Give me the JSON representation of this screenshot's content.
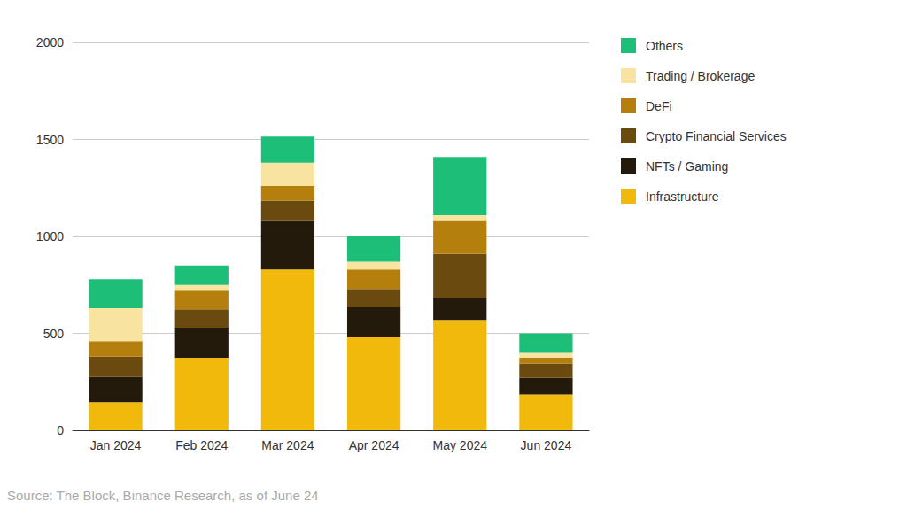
{
  "chart_data": {
    "type": "bar",
    "stacked": true,
    "grid": true,
    "legend": "right",
    "source": "Source: The Block, Binance Research, as of June 24",
    "categories": [
      "Jan 2024",
      "Feb 2024",
      "Mar 2024",
      "Apr 2024",
      "May 2024",
      "Jun 2024"
    ],
    "ylim": [
      0,
      2000
    ],
    "yticks": [
      0,
      500,
      1000,
      1500,
      2000
    ],
    "series": [
      {
        "name": "Infrastructure",
        "color": "#f0b90b",
        "values": [
          145,
          375,
          830,
          480,
          570,
          185
        ]
      },
      {
        "name": "NFTs / Gaming",
        "color": "#231a0b",
        "values": [
          130,
          155,
          250,
          155,
          115,
          85
        ]
      },
      {
        "name": "Crypto Financial Services",
        "color": "#6b4a10",
        "values": [
          105,
          95,
          105,
          95,
          225,
          75
        ]
      },
      {
        "name": "DeFi",
        "color": "#b47f0c",
        "values": [
          80,
          95,
          75,
          100,
          170,
          30
        ]
      },
      {
        "name": "Trading / Brokerage",
        "color": "#f8e3a0",
        "values": [
          170,
          30,
          120,
          40,
          30,
          25
        ]
      },
      {
        "name": "Others",
        "color": "#1dbf78",
        "values": [
          150,
          100,
          135,
          135,
          300,
          100
        ]
      }
    ]
  }
}
